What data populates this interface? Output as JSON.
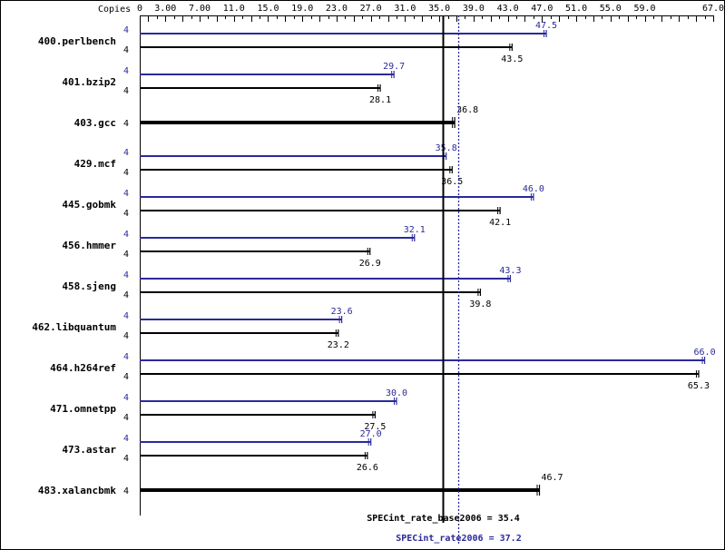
{
  "chart_data": {
    "type": "bar",
    "orientation": "horizontal",
    "copies_label": "Copies",
    "axis": {
      "min": 0,
      "max": 67,
      "tick_labels": [
        "0",
        "3.00",
        "7.00",
        "11.0",
        "15.0",
        "19.0",
        "23.0",
        "27.0",
        "31.0",
        "35.0",
        "39.0",
        "43.0",
        "47.0",
        "51.0",
        "55.0",
        "59.0",
        "67.0"
      ]
    },
    "series": [
      {
        "name": "peak",
        "color": "#2a2a9a"
      },
      {
        "name": "base",
        "color": "#000000"
      }
    ],
    "benchmarks": [
      {
        "name": "400.perlbench",
        "peak_copies": "4",
        "base_copies": "4",
        "peak": 47.5,
        "base": 43.5,
        "peak_label": "47.5",
        "base_label": "43.5"
      },
      {
        "name": "401.bzip2",
        "peak_copies": "4",
        "base_copies": "4",
        "peak": 29.7,
        "base": 28.1,
        "peak_label": "29.7",
        "base_label": "28.1"
      },
      {
        "name": "403.gcc",
        "copies": "4",
        "value": 36.8,
        "value_label": "36.8"
      },
      {
        "name": "429.mcf",
        "peak_copies": "4",
        "base_copies": "4",
        "peak": 35.8,
        "base": 36.5,
        "peak_label": "35.8",
        "base_label": "36.5"
      },
      {
        "name": "445.gobmk",
        "peak_copies": "4",
        "base_copies": "4",
        "peak": 46.0,
        "base": 42.1,
        "peak_label": "46.0",
        "base_label": "42.1"
      },
      {
        "name": "456.hmmer",
        "peak_copies": "4",
        "base_copies": "4",
        "peak": 32.1,
        "base": 26.9,
        "peak_label": "32.1",
        "base_label": "26.9"
      },
      {
        "name": "458.sjeng",
        "peak_copies": "4",
        "base_copies": "4",
        "peak": 43.3,
        "base": 39.8,
        "peak_label": "43.3",
        "base_label": "39.8"
      },
      {
        "name": "462.libquantum",
        "peak_copies": "4",
        "base_copies": "4",
        "peak": 23.6,
        "base": 23.2,
        "peak_label": "23.6",
        "base_label": "23.2"
      },
      {
        "name": "464.h264ref",
        "peak_copies": "4",
        "base_copies": "4",
        "peak": 66.0,
        "base": 65.3,
        "peak_label": "66.0",
        "base_label": "65.3"
      },
      {
        "name": "471.omnetpp",
        "peak_copies": "4",
        "base_copies": "4",
        "peak": 30.0,
        "base": 27.5,
        "peak_label": "30.0",
        "base_label": "27.5"
      },
      {
        "name": "473.astar",
        "peak_copies": "4",
        "base_copies": "4",
        "peak": 27.0,
        "base": 26.6,
        "peak_label": "27.0",
        "base_label": "26.6"
      },
      {
        "name": "483.xalancbmk",
        "copies": "4",
        "value": 46.7,
        "value_label": "46.7"
      }
    ],
    "summary": {
      "base_label": "SPECint_rate_base2006 = 35.4",
      "base_value": 35.4,
      "peak_label": "SPECint_rate2006 = 37.2",
      "peak_value": 37.2
    }
  }
}
